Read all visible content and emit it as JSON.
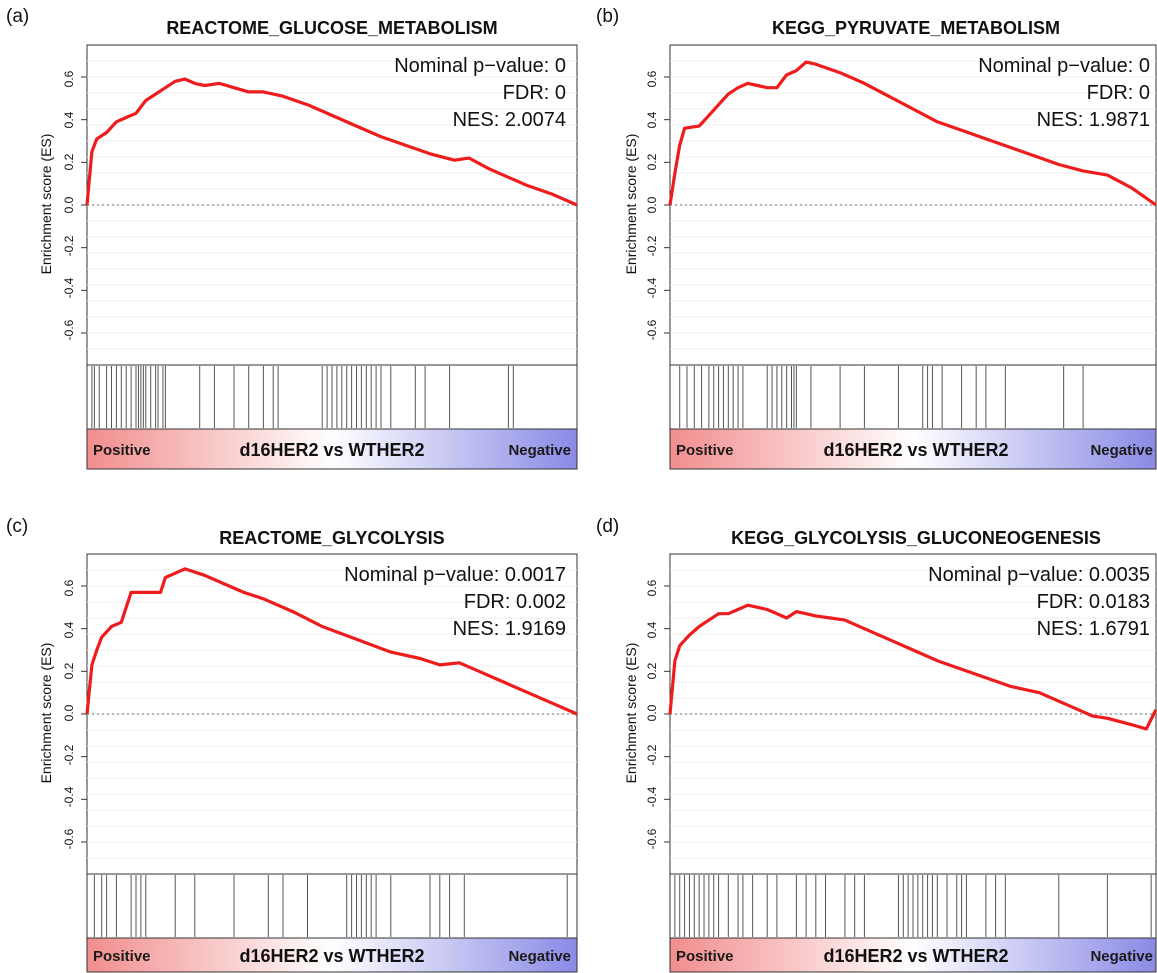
{
  "figure": {
    "colors": {
      "es_line": "#ee1c1c",
      "positive": "#f28d8d",
      "negative": "#8a8ae6",
      "frame": "#333333",
      "hit": "#555555"
    }
  },
  "chart_data": [
    {
      "type": "line",
      "panel_label": "(a)",
      "title": "REACTOME_GLUCOSE_METABOLISM",
      "ylabel": "Enrichment score (ES)",
      "ylim": [
        -0.75,
        0.75
      ],
      "yticks": [
        "0.6",
        "0.4",
        "0.2",
        "0.0",
        "-0.2",
        "-0.4",
        "-0.6"
      ],
      "ytick_values": [
        0.6,
        0.4,
        0.2,
        0.0,
        -0.2,
        -0.4,
        -0.6
      ],
      "stats": {
        "pvalue": "Nominal p−value: 0",
        "fdr": "FDR: 0",
        "nes": "NES: 2.0074"
      },
      "bar": {
        "positive": "Positive",
        "comparison": "d16HER2 vs WTHER2",
        "negative": "Negative"
      },
      "x": [
        0,
        0.01,
        0.02,
        0.04,
        0.06,
        0.08,
        0.1,
        0.12,
        0.14,
        0.16,
        0.18,
        0.2,
        0.22,
        0.24,
        0.27,
        0.3,
        0.33,
        0.36,
        0.4,
        0.45,
        0.5,
        0.55,
        0.6,
        0.65,
        0.7,
        0.75,
        0.78,
        0.82,
        0.86,
        0.9,
        0.95,
        1.0
      ],
      "values": [
        0,
        0.25,
        0.31,
        0.34,
        0.39,
        0.41,
        0.43,
        0.49,
        0.52,
        0.55,
        0.58,
        0.59,
        0.57,
        0.56,
        0.57,
        0.55,
        0.53,
        0.53,
        0.51,
        0.47,
        0.42,
        0.37,
        0.32,
        0.28,
        0.24,
        0.21,
        0.22,
        0.17,
        0.13,
        0.09,
        0.05,
        0.0
      ],
      "hits": [
        0.01,
        0.015,
        0.025,
        0.04,
        0.05,
        0.06,
        0.07,
        0.08,
        0.09,
        0.1,
        0.105,
        0.11,
        0.115,
        0.12,
        0.13,
        0.14,
        0.145,
        0.155,
        0.16,
        0.23,
        0.26,
        0.3,
        0.33,
        0.36,
        0.38,
        0.39,
        0.48,
        0.49,
        0.5,
        0.51,
        0.52,
        0.53,
        0.54,
        0.55,
        0.56,
        0.57,
        0.58,
        0.59,
        0.6,
        0.62,
        0.67,
        0.69,
        0.74,
        0.86,
        0.87
      ]
    },
    {
      "type": "line",
      "panel_label": "(b)",
      "title": "KEGG_PYRUVATE_METABOLISM",
      "ylabel": "Enrichment score (ES)",
      "ylim": [
        -0.75,
        0.75
      ],
      "yticks": [
        "0.6",
        "0.4",
        "0.2",
        "0.0",
        "-0.2",
        "-0.4",
        "-0.6"
      ],
      "ytick_values": [
        0.6,
        0.4,
        0.2,
        0.0,
        -0.2,
        -0.4,
        -0.6
      ],
      "stats": {
        "pvalue": "Nominal p−value: 0",
        "fdr": "FDR: 0",
        "nes": "NES: 1.9871"
      },
      "bar": {
        "positive": "Positive",
        "comparison": "d16HER2 vs WTHER2",
        "negative": "Negative"
      },
      "x": [
        0,
        0.01,
        0.02,
        0.03,
        0.06,
        0.08,
        0.1,
        0.12,
        0.14,
        0.16,
        0.18,
        0.2,
        0.22,
        0.24,
        0.26,
        0.28,
        0.3,
        0.35,
        0.4,
        0.45,
        0.5,
        0.55,
        0.6,
        0.65,
        0.7,
        0.75,
        0.8,
        0.85,
        0.9,
        0.95,
        1.0
      ],
      "values": [
        0,
        0.15,
        0.28,
        0.36,
        0.37,
        0.42,
        0.47,
        0.52,
        0.55,
        0.57,
        0.56,
        0.55,
        0.55,
        0.61,
        0.63,
        0.67,
        0.66,
        0.62,
        0.57,
        0.51,
        0.45,
        0.39,
        0.35,
        0.31,
        0.27,
        0.23,
        0.19,
        0.16,
        0.14,
        0.08,
        0.0
      ],
      "hits": [
        0.02,
        0.035,
        0.05,
        0.065,
        0.08,
        0.09,
        0.1,
        0.11,
        0.12,
        0.13,
        0.14,
        0.15,
        0.2,
        0.21,
        0.22,
        0.23,
        0.24,
        0.25,
        0.255,
        0.26,
        0.29,
        0.35,
        0.4,
        0.47,
        0.52,
        0.53,
        0.54,
        0.56,
        0.6,
        0.63,
        0.65,
        0.69,
        0.81,
        0.85
      ]
    },
    {
      "type": "line",
      "panel_label": "(c)",
      "title": "REACTOME_GLYCOLYSIS",
      "ylabel": "Enrichment score (ES)",
      "ylim": [
        -0.75,
        0.75
      ],
      "yticks": [
        "0.6",
        "0.4",
        "0.2",
        "0.0",
        "-0.2",
        "-0.4",
        "-0.6"
      ],
      "ytick_values": [
        0.6,
        0.4,
        0.2,
        0.0,
        -0.2,
        -0.4,
        -0.6
      ],
      "stats": {
        "pvalue": "Nominal p−value: 0.0017",
        "fdr": "FDR: 0.002",
        "nes": "NES: 1.9169"
      },
      "bar": {
        "positive": "Positive",
        "comparison": "d16HER2 vs WTHER2",
        "negative": "Negative"
      },
      "x": [
        0,
        0.01,
        0.02,
        0.03,
        0.05,
        0.07,
        0.09,
        0.1,
        0.11,
        0.15,
        0.16,
        0.18,
        0.2,
        0.24,
        0.28,
        0.32,
        0.36,
        0.42,
        0.48,
        0.55,
        0.62,
        0.68,
        0.72,
        0.76,
        0.8,
        0.85,
        0.9,
        0.95,
        1.0
      ],
      "values": [
        0,
        0.23,
        0.3,
        0.36,
        0.41,
        0.43,
        0.57,
        0.57,
        0.57,
        0.57,
        0.64,
        0.66,
        0.68,
        0.65,
        0.61,
        0.57,
        0.54,
        0.48,
        0.41,
        0.35,
        0.29,
        0.26,
        0.23,
        0.24,
        0.2,
        0.15,
        0.1,
        0.05,
        0.0
      ],
      "hits": [
        0.015,
        0.03,
        0.04,
        0.06,
        0.09,
        0.1,
        0.11,
        0.12,
        0.18,
        0.22,
        0.3,
        0.37,
        0.4,
        0.45,
        0.53,
        0.54,
        0.55,
        0.56,
        0.57,
        0.58,
        0.59,
        0.62,
        0.7,
        0.72,
        0.74,
        0.77,
        0.98
      ]
    },
    {
      "type": "line",
      "panel_label": "(d)",
      "title": "KEGG_GLYCOLYSIS_GLUCONEOGENESIS",
      "ylabel": "Enrichment score (ES)",
      "ylim": [
        -0.75,
        0.75
      ],
      "yticks": [
        "0.6",
        "0.4",
        "0.2",
        "0.0",
        "-0.2",
        "-0.4",
        "-0.6"
      ],
      "ytick_values": [
        0.6,
        0.4,
        0.2,
        0.0,
        -0.2,
        -0.4,
        -0.6
      ],
      "stats": {
        "pvalue": "Nominal p−value: 0.0035",
        "fdr": "FDR: 0.0183",
        "nes": "NES: 1.6791"
      },
      "bar": {
        "positive": "Positive",
        "comparison": "d16HER2 vs WTHER2",
        "negative": "Negative"
      },
      "x": [
        0,
        0.01,
        0.02,
        0.04,
        0.06,
        0.08,
        0.1,
        0.12,
        0.14,
        0.16,
        0.18,
        0.2,
        0.22,
        0.24,
        0.26,
        0.28,
        0.3,
        0.33,
        0.36,
        0.4,
        0.45,
        0.5,
        0.55,
        0.6,
        0.65,
        0.7,
        0.72,
        0.76,
        0.8,
        0.84,
        0.87,
        0.9,
        0.95,
        0.98,
        1.0
      ],
      "values": [
        0,
        0.25,
        0.32,
        0.37,
        0.41,
        0.44,
        0.47,
        0.47,
        0.49,
        0.51,
        0.5,
        0.49,
        0.47,
        0.45,
        0.48,
        0.47,
        0.46,
        0.45,
        0.44,
        0.4,
        0.35,
        0.3,
        0.25,
        0.21,
        0.17,
        0.13,
        0.12,
        0.1,
        0.06,
        0.02,
        -0.01,
        -0.02,
        -0.05,
        -0.07,
        0.02
      ],
      "hits": [
        0.01,
        0.02,
        0.03,
        0.04,
        0.05,
        0.06,
        0.07,
        0.08,
        0.09,
        0.1,
        0.12,
        0.14,
        0.15,
        0.17,
        0.2,
        0.22,
        0.26,
        0.28,
        0.3,
        0.32,
        0.36,
        0.38,
        0.4,
        0.47,
        0.48,
        0.49,
        0.5,
        0.51,
        0.52,
        0.53,
        0.54,
        0.55,
        0.57,
        0.59,
        0.6,
        0.61,
        0.65,
        0.67,
        0.69,
        0.8,
        0.9,
        0.99
      ]
    }
  ]
}
